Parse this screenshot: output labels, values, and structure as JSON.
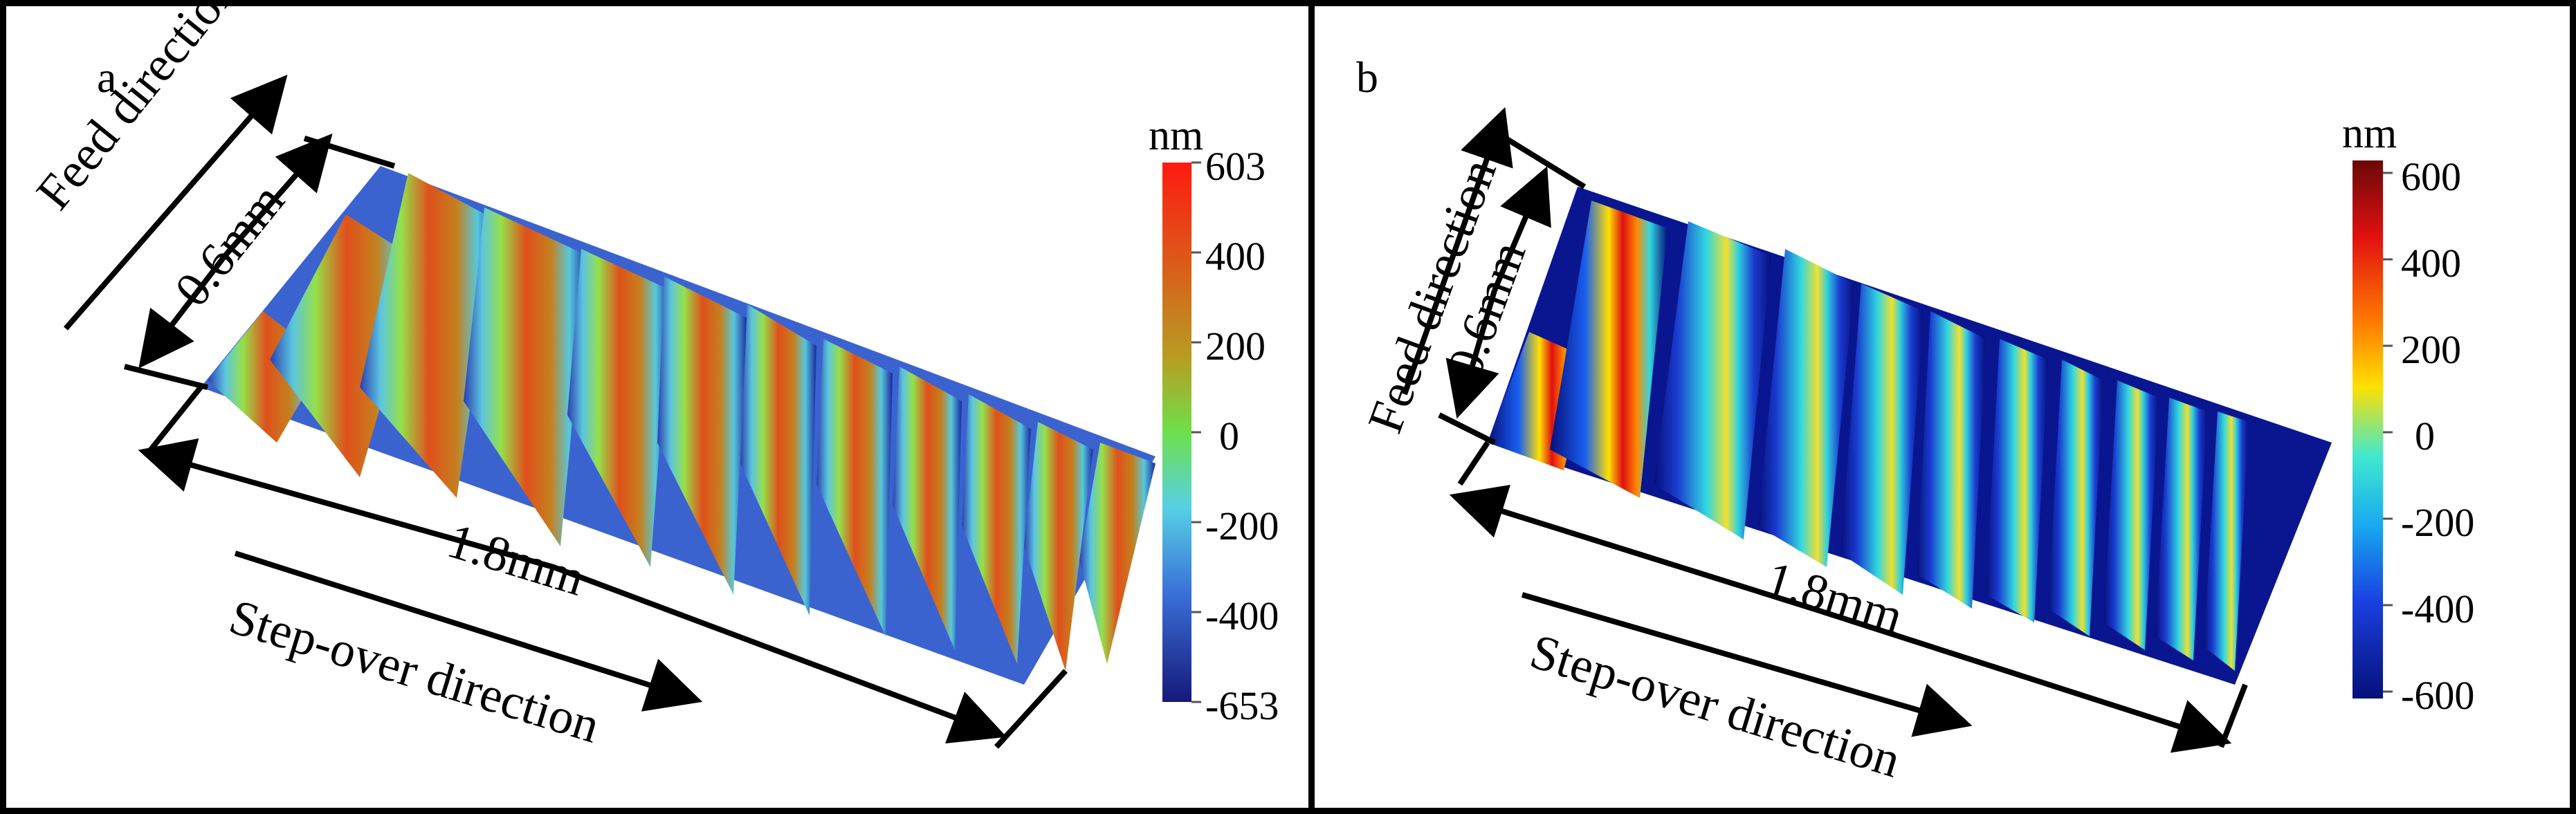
{
  "figure": {
    "panels": [
      {
        "label": "a",
        "annotations": {
          "feed_direction": "Feed direction",
          "width": "0.6mm",
          "length": "1.8mm",
          "step_over_direction": "Step-over direction"
        },
        "colorbar": {
          "unit": "nm",
          "ticks": [
            "603",
            "400",
            "200",
            "0",
            "-200",
            "-400",
            "-653"
          ],
          "colormap": [
            "#e8201e",
            "#d8601a",
            "#c09a20",
            "#68e048",
            "#52cfe0",
            "#3a6fd8",
            "#16187a"
          ]
        }
      },
      {
        "label": "b",
        "annotations": {
          "feed_direction": "Feed direction",
          "width": "0.6mm",
          "length": "1.8mm",
          "step_over_direction": "Step-over direction"
        },
        "colorbar": {
          "unit": "nm",
          "ticks": [
            "600",
            "400",
            "200",
            "0",
            "-200",
            "-400",
            "-600"
          ],
          "colormap": [
            "#7a0c0c",
            "#e01010",
            "#ff7a00",
            "#ffe000",
            "#30e0e0",
            "#1a5ef0",
            "#06107a"
          ]
        }
      }
    ]
  }
}
